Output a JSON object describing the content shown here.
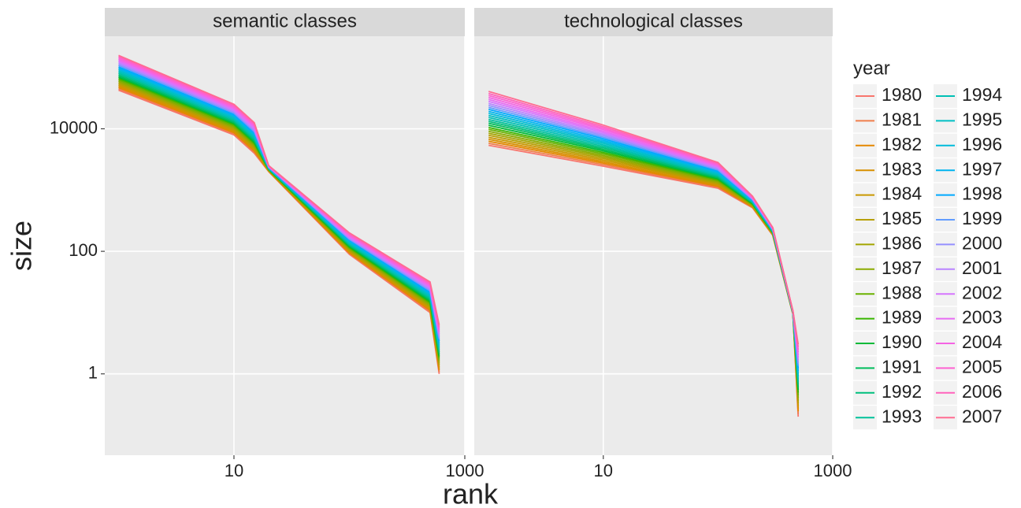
{
  "chart_data": [
    {
      "type": "line",
      "title": "semantic classes",
      "xlabel": "rank",
      "ylabel": "size",
      "legend_title": "year",
      "log": true,
      "grid": true,
      "x": [
        1,
        10,
        15,
        20,
        100,
        500,
        600
      ],
      "xlim": [
        0.76,
        1000
      ],
      "xticks": [
        10,
        1000
      ],
      "ylim": [
        0.047,
        324000
      ],
      "yticks": [
        1,
        100,
        10000
      ],
      "series": [
        {
          "name": "1980",
          "color": "#F8766D",
          "values": [
            42700,
            7940,
            3980,
            2000,
            89.1,
            10,
            1
          ]
        },
        {
          "name": "1981",
          "color": "#F07E4B",
          "values": [
            44800,
            8290,
            4150,
            2020,
            91.8,
            10.4,
            1.07
          ]
        },
        {
          "name": "1982",
          "color": "#E58700",
          "values": [
            47000,
            8650,
            4340,
            2030,
            94.6,
            10.9,
            1.15
          ]
        },
        {
          "name": "1983",
          "color": "#D89000",
          "values": [
            49400,
            9030,
            4520,
            2050,
            97.5,
            11.4,
            1.23
          ]
        },
        {
          "name": "1984",
          "color": "#C99800",
          "values": [
            51800,
            9420,
            4720,
            2070,
            100,
            11.9,
            1.31
          ]
        },
        {
          "name": "1985",
          "color": "#B79F00",
          "values": [
            54400,
            9830,
            4930,
            2090,
            103,
            12.4,
            1.41
          ]
        },
        {
          "name": "1986",
          "color": "#A3A500",
          "values": [
            57100,
            10300,
            5140,
            2100,
            106,
            12.9,
            1.51
          ]
        },
        {
          "name": "1987",
          "color": "#8BAB00",
          "values": [
            60000,
            10700,
            5370,
            2120,
            110,
            13.5,
            1.61
          ]
        },
        {
          "name": "1988",
          "color": "#6BB100",
          "values": [
            63000,
            11200,
            5600,
            2140,
            113,
            14.1,
            1.72
          ]
        },
        {
          "name": "1989",
          "color": "#39B600",
          "values": [
            66100,
            11700,
            5840,
            2160,
            116,
            14.7,
            1.85
          ]
        },
        {
          "name": "1990",
          "color": "#00BA38",
          "values": [
            69400,
            12200,
            6100,
            2180,
            120,
            15.3,
            1.98
          ]
        },
        {
          "name": "1991",
          "color": "#00BD5C",
          "values": [
            72900,
            12700,
            6360,
            2190,
            124,
            16.0,
            2.12
          ]
        },
        {
          "name": "1992",
          "color": "#00BF7D",
          "values": [
            76500,
            13200,
            6640,
            2210,
            127,
            16.7,
            2.27
          ]
        },
        {
          "name": "1993",
          "color": "#00C19A",
          "values": [
            80300,
            13800,
            6930,
            2230,
            131,
            17.4,
            2.43
          ]
        },
        {
          "name": "1994",
          "color": "#00C0B5",
          "values": [
            84300,
            14400,
            7230,
            2250,
            135,
            18.2,
            2.6
          ]
        },
        {
          "name": "1995",
          "color": "#00BFC4",
          "values": [
            88500,
            15100,
            7550,
            2270,
            139,
            19.0,
            2.78
          ]
        },
        {
          "name": "1996",
          "color": "#00BBDB",
          "values": [
            92900,
            15700,
            7880,
            2290,
            143,
            19.8,
            2.98
          ]
        },
        {
          "name": "1997",
          "color": "#00B4EF",
          "values": [
            97600,
            16400,
            8220,
            2310,
            148,
            20.6,
            3.19
          ]
        },
        {
          "name": "1998",
          "color": "#00A9FF",
          "values": [
            102000,
            17100,
            8580,
            2330,
            152,
            21.5,
            3.41
          ]
        },
        {
          "name": "1999",
          "color": "#619CFF",
          "values": [
            108000,
            17900,
            8950,
            2350,
            157,
            22.5,
            3.65
          ]
        },
        {
          "name": "2000",
          "color": "#9590FF",
          "values": [
            113000,
            18600,
            9340,
            2370,
            161,
            23.4,
            3.91
          ]
        },
        {
          "name": "2001",
          "color": "#B983FF",
          "values": [
            119000,
            19400,
            9750,
            2390,
            166,
            24.4,
            4.19
          ]
        },
        {
          "name": "2002",
          "color": "#D575FE",
          "values": [
            125000,
            20300,
            10200,
            2410,
            171,
            25.5,
            4.48
          ]
        },
        {
          "name": "2003",
          "color": "#E76BF3",
          "values": [
            131000,
            21200,
            10600,
            2430,
            176,
            26.6,
            4.8
          ]
        },
        {
          "name": "2004",
          "color": "#F564E3",
          "values": [
            137000,
            22100,
            11100,
            2450,
            182,
            27.8,
            5.14
          ]
        },
        {
          "name": "2005",
          "color": "#FD61D1",
          "values": [
            144000,
            23000,
            11600,
            2470,
            187,
            29.0,
            5.5
          ]
        },
        {
          "name": "2006",
          "color": "#FF62BC",
          "values": [
            151000,
            24000,
            12100,
            2490,
            193,
            30.2,
            5.89
          ]
        },
        {
          "name": "2007",
          "color": "#FF6C91",
          "values": [
            158000,
            25100,
            12600,
            2510,
            200,
            31.6,
            6.31
          ]
        }
      ]
    },
    {
      "type": "line",
      "title": "technological classes",
      "log": true,
      "grid": true,
      "x": [
        1,
        10,
        100,
        200,
        300,
        450,
        500
      ],
      "xlim": [
        0.75,
        1000
      ],
      "xticks": [
        10,
        1000
      ],
      "ylim": [
        0.047,
        324000
      ],
      "yticks": [
        1,
        100,
        10000
      ],
      "series": [
        {
          "name": "1980",
          "color": "#F8766D",
          "values": [
            5370,
            2450,
            1070,
            513,
            182,
            9.33,
            0.2
          ]
        },
        {
          "name": "1981",
          "color": "#F07E4B",
          "values": [
            5790,
            2600,
            1110,
            521,
            184,
            9.38,
            0.221
          ]
        },
        {
          "name": "1982",
          "color": "#E58700",
          "values": [
            6240,
            2750,
            1150,
            530,
            186,
            9.43,
            0.245
          ]
        },
        {
          "name": "1983",
          "color": "#D89000",
          "values": [
            6730,
            2910,
            1190,
            538,
            188,
            9.47,
            0.271
          ]
        },
        {
          "name": "1984",
          "color": "#C99800",
          "values": [
            7250,
            3090,
            1240,
            547,
            190,
            9.52,
            0.299
          ]
        },
        {
          "name": "1985",
          "color": "#B79F00",
          "values": [
            7820,
            3270,
            1280,
            556,
            192,
            9.57,
            0.331
          ]
        },
        {
          "name": "1986",
          "color": "#A3A500",
          "values": [
            8420,
            3460,
            1330,
            565,
            194,
            9.62,
            0.366
          ]
        },
        {
          "name": "1987",
          "color": "#8BAB00",
          "values": [
            9080,
            3660,
            1380,
            574,
            197,
            9.67,
            0.405
          ]
        },
        {
          "name": "1988",
          "color": "#6BB100",
          "values": [
            9790,
            3880,
            1430,
            584,
            199,
            9.72,
            0.448
          ]
        },
        {
          "name": "1989",
          "color": "#39B600",
          "values": [
            10500,
            4110,
            1480,
            593,
            201,
            9.77,
            0.495
          ]
        },
        {
          "name": "1990",
          "color": "#00BA38",
          "values": [
            11400,
            4350,
            1530,
            603,
            203,
            9.82,
            0.548
          ]
        },
        {
          "name": "1991",
          "color": "#00BD5C",
          "values": [
            12300,
            4600,
            1590,
            613,
            206,
            9.87,
            0.606
          ]
        },
        {
          "name": "1992",
          "color": "#00BF7D",
          "values": [
            13200,
            4870,
            1650,
            622,
            208,
            9.92,
            0.67
          ]
        },
        {
          "name": "1993",
          "color": "#00C19A",
          "values": [
            14200,
            5160,
            1710,
            633,
            210,
            9.97,
            0.741
          ]
        },
        {
          "name": "1994",
          "color": "#00C0B5",
          "values": [
            15300,
            5460,
            1770,
            643,
            213,
            10.0,
            0.82
          ]
        },
        {
          "name": "1995",
          "color": "#00BFC4",
          "values": [
            16500,
            5780,
            1830,
            653,
            215,
            10.1,
            0.907
          ]
        },
        {
          "name": "1996",
          "color": "#00BBDB",
          "values": [
            17800,
            6120,
            1900,
            664,
            217,
            10.1,
            1.0
          ]
        },
        {
          "name": "1997",
          "color": "#00B4EF",
          "values": [
            19200,
            6480,
            1970,
            675,
            220,
            10.2,
            1.11
          ]
        },
        {
          "name": "1998",
          "color": "#00A9FF",
          "values": [
            20700,
            6870,
            2040,
            686,
            222,
            10.2,
            1.23
          ]
        },
        {
          "name": "1999",
          "color": "#619CFF",
          "values": [
            22300,
            7270,
            2120,
            697,
            225,
            10.3,
            1.36
          ]
        },
        {
          "name": "2000",
          "color": "#9590FF",
          "values": [
            24000,
            7700,
            2190,
            708,
            227,
            10.3,
            1.5
          ]
        },
        {
          "name": "2001",
          "color": "#B983FF",
          "values": [
            25900,
            8150,
            2270,
            720,
            230,
            10.4,
            1.66
          ]
        },
        {
          "name": "2002",
          "color": "#D575FE",
          "values": [
            27900,
            8630,
            2360,
            731,
            232,
            10.4,
            1.84
          ]
        },
        {
          "name": "2003",
          "color": "#E76BF3",
          "values": [
            30100,
            9130,
            2440,
            743,
            235,
            10.5,
            2.03
          ]
        },
        {
          "name": "2004",
          "color": "#F564E3",
          "values": [
            32400,
            9670,
            2530,
            755,
            237,
            10.5,
            2.25
          ]
        },
        {
          "name": "2005",
          "color": "#FD61D1",
          "values": [
            35000,
            10200,
            2620,
            768,
            240,
            10.6,
            2.48
          ]
        },
        {
          "name": "2006",
          "color": "#FF62BC",
          "values": [
            37700,
            10800,
            2720,
            780,
            243,
            10.6,
            2.75
          ]
        },
        {
          "name": "2007",
          "color": "#FF6C91",
          "values": [
            40700,
            11500,
            2820,
            794,
            245,
            10.7,
            3.04
          ]
        }
      ]
    }
  ]
}
